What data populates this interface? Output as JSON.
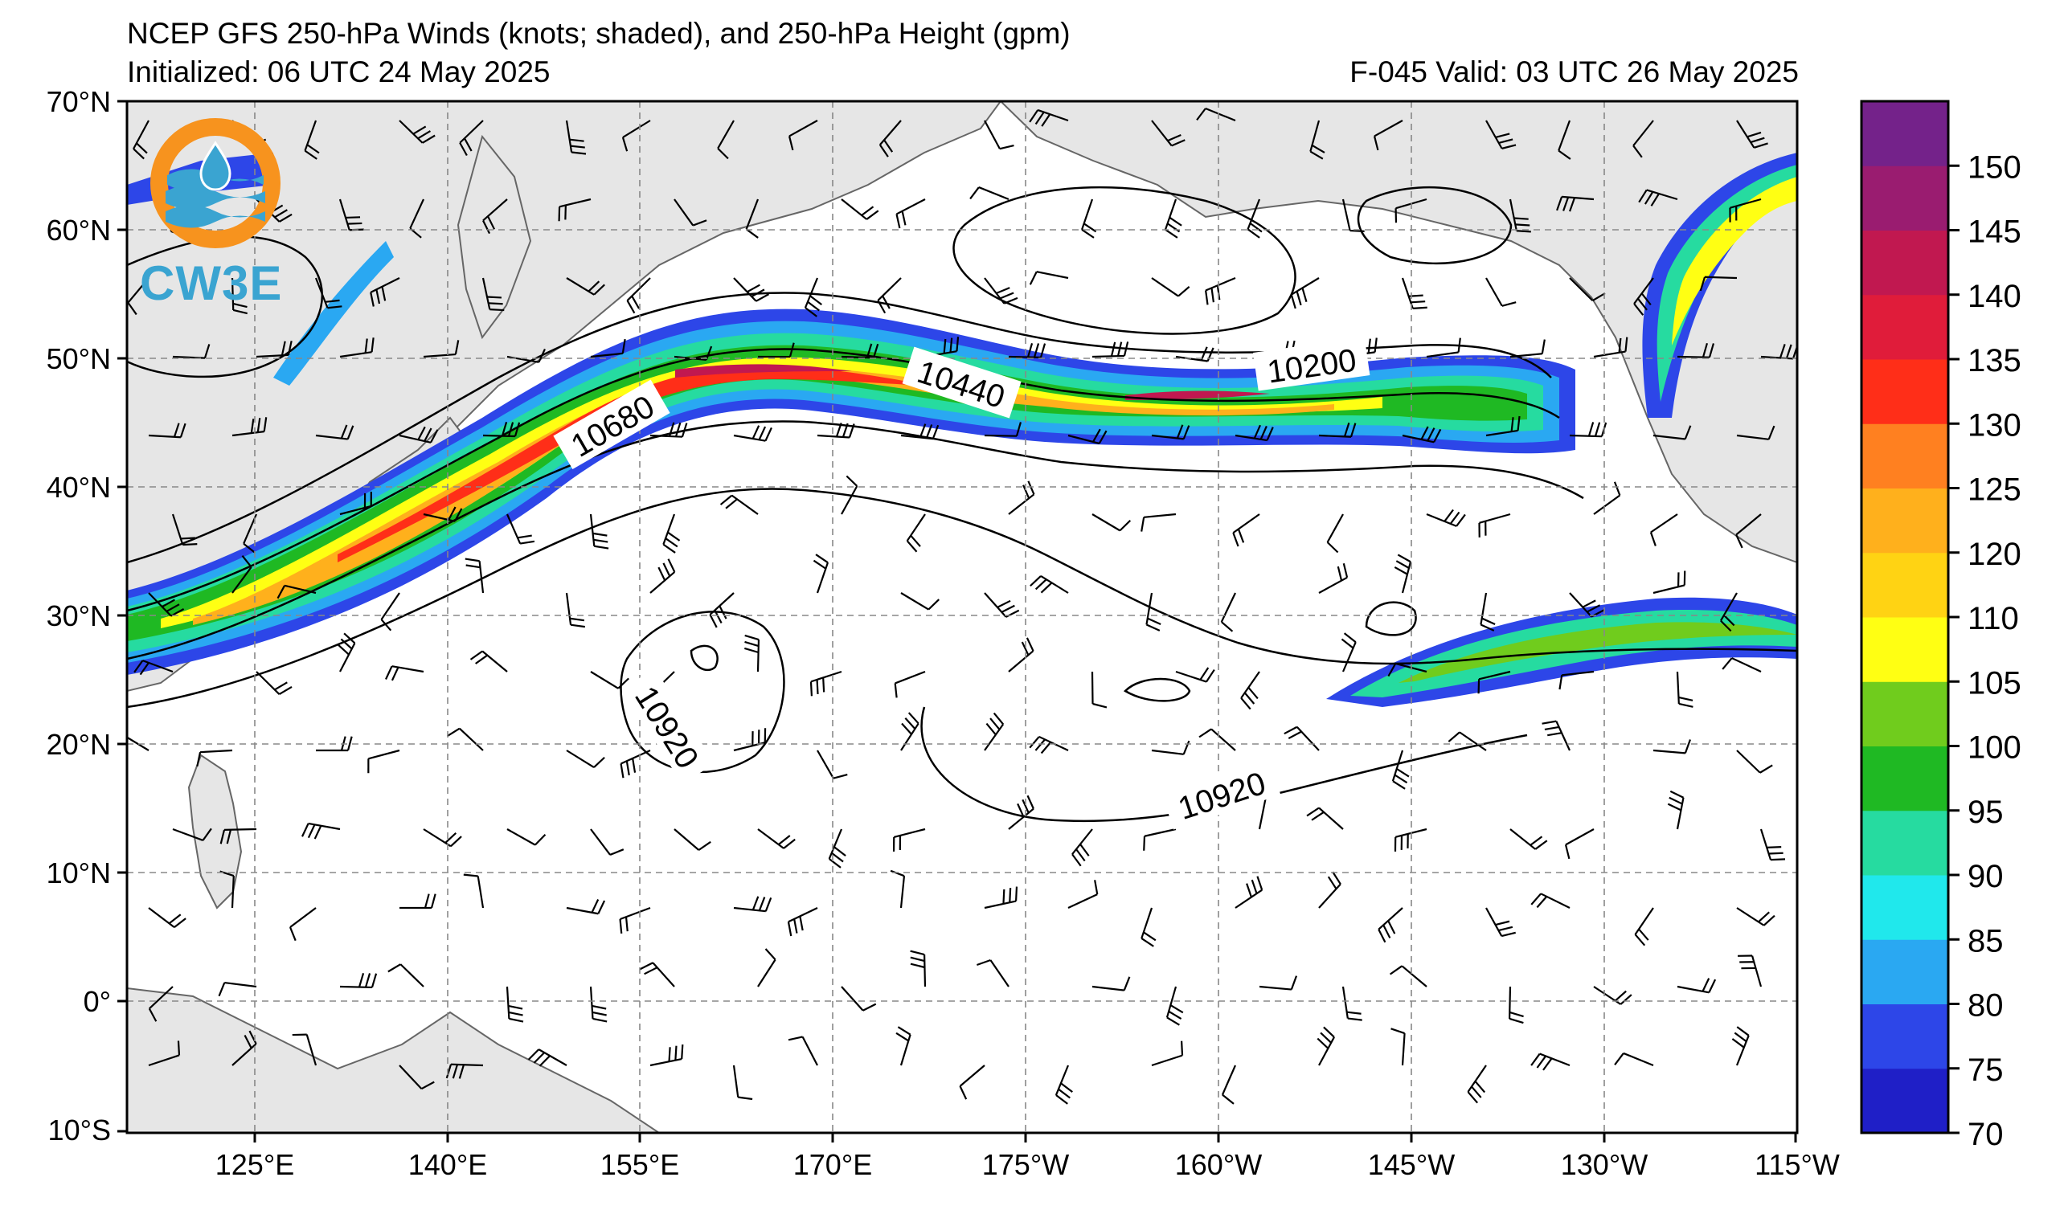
{
  "header": {
    "title": "NCEP GFS 250-hPa Winds (knots; shaded), and 250-hPa Height (gpm)",
    "initialized": "Initialized: 06 UTC 24 May 2025",
    "valid": "F-045  Valid: 03 UTC 26 May 2025"
  },
  "logo": {
    "text": "CW3E",
    "icon": "cw3e-logo-icon",
    "colors": {
      "ring": "#f7931e",
      "wave": "#3aa4d1"
    }
  },
  "axes": {
    "lat_labels": [
      "70°N",
      "60°N",
      "50°N",
      "40°N",
      "30°N",
      "20°N",
      "10°N",
      "0°",
      "10°S"
    ],
    "lon_labels": [
      "125°E",
      "140°E",
      "155°E",
      "170°E",
      "175°W",
      "160°W",
      "145°W",
      "130°W",
      "115°W"
    ]
  },
  "contour_labels": [
    "10680",
    "10440",
    "10200",
    "10920",
    "10920"
  ],
  "colorbar": {
    "ticks": [
      "70",
      "75",
      "80",
      "85",
      "90",
      "95",
      "100",
      "105",
      "110",
      "120",
      "125",
      "130",
      "135",
      "140",
      "145",
      "150"
    ],
    "colors": [
      "#1f1fc7",
      "#2d46e8",
      "#2aa8f2",
      "#20e8ec",
      "#26dba0",
      "#1fb923",
      "#70cc1d",
      "#ffff13",
      "#ffd313",
      "#ffb01c",
      "#ff8020",
      "#ff2e18",
      "#e01c3a",
      "#c11850",
      "#9a1c70",
      "#74228a"
    ]
  },
  "chart_data": {
    "type": "map",
    "variable": "250-hPa wind speed (knots, shaded) and 250-hPa geopotential height (gpm, contours)",
    "lat_range": [
      -10,
      70
    ],
    "lon_range_deg_east": [
      115,
      245
    ],
    "height_contour_labels_gpm": [
      10680,
      10440,
      10200,
      10920,
      10920
    ],
    "shading_bins_knots": [
      70,
      75,
      80,
      85,
      90,
      95,
      100,
      105,
      110,
      120,
      125,
      130,
      135,
      140,
      145,
      150
    ],
    "grid": true
  }
}
